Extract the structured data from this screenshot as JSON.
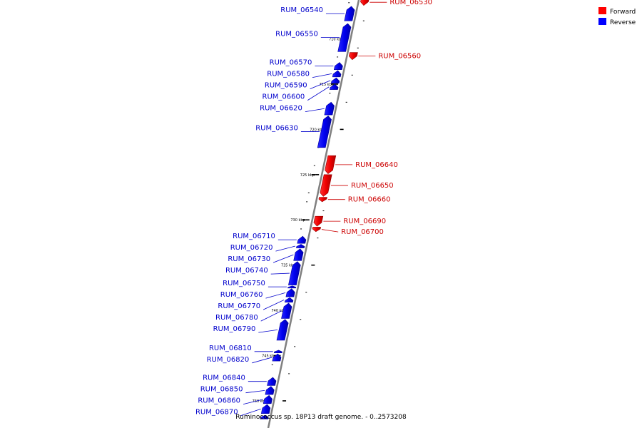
{
  "caption": "Ruminococcus sp. 18P13 draft genome. - 0..2573208",
  "colors": {
    "forward": "#ff0000",
    "reverse": "#0000ff",
    "axis": "#808080"
  },
  "legend": {
    "forward": {
      "label": "Forward",
      "color": "#ff0000"
    },
    "reverse": {
      "label": "Reverse",
      "color": "#0000ff"
    }
  },
  "axis": {
    "start_kbp": 706,
    "end_kbp": 753,
    "ticks": [
      {
        "label": "710 kbp",
        "kbp": 710
      },
      {
        "label": "715 kbp",
        "kbp": 715
      },
      {
        "label": "720 kbp",
        "kbp": 720
      },
      {
        "label": "725 kbp",
        "kbp": 725
      },
      {
        "label": "730 kbp",
        "kbp": 730
      },
      {
        "label": "735 kbp",
        "kbp": 735
      },
      {
        "label": "740 kbp",
        "kbp": 740
      },
      {
        "label": "745 kbp",
        "kbp": 745
      },
      {
        "label": "750 kbp",
        "kbp": 750
      }
    ]
  },
  "genes": [
    {
      "name": "RUM_06530",
      "strand": "forward",
      "start_kbp": 705.6,
      "end_kbp": 706.3
    },
    {
      "name": "RUM_06540",
      "strand": "reverse",
      "start_kbp": 706.4,
      "end_kbp": 708.0
    },
    {
      "name": "RUM_06550",
      "strand": "reverse",
      "start_kbp": 708.3,
      "end_kbp": 711.4
    },
    {
      "name": "RUM_06560",
      "strand": "forward",
      "start_kbp": 711.5,
      "end_kbp": 712.3
    },
    {
      "name": "RUM_06570",
      "strand": "reverse",
      "start_kbp": 712.6,
      "end_kbp": 713.4
    },
    {
      "name": "RUM_06580",
      "strand": "reverse",
      "start_kbp": 713.5,
      "end_kbp": 714.2
    },
    {
      "name": "RUM_06590",
      "strand": "reverse",
      "start_kbp": 714.3,
      "end_kbp": 714.9
    },
    {
      "name": "RUM_06600",
      "strand": "reverse",
      "start_kbp": 715.0,
      "end_kbp": 715.6
    },
    {
      "name": "RUM_06620",
      "strand": "reverse",
      "start_kbp": 717.0,
      "end_kbp": 718.4
    },
    {
      "name": "RUM_06630",
      "strand": "reverse",
      "start_kbp": 718.5,
      "end_kbp": 722.0
    },
    {
      "name": "RUM_06640",
      "strand": "forward",
      "start_kbp": 722.9,
      "end_kbp": 724.9
    },
    {
      "name": "RUM_06650",
      "strand": "forward",
      "start_kbp": 725.0,
      "end_kbp": 727.4
    },
    {
      "name": "RUM_06660",
      "strand": "forward",
      "start_kbp": 727.5,
      "end_kbp": 728.0
    },
    {
      "name": "RUM_06690",
      "strand": "forward",
      "start_kbp": 729.6,
      "end_kbp": 730.7
    },
    {
      "name": "RUM_06700",
      "strand": "forward",
      "start_kbp": 730.8,
      "end_kbp": 731.3
    },
    {
      "name": "RUM_06710",
      "strand": "reverse",
      "start_kbp": 731.8,
      "end_kbp": 732.6
    },
    {
      "name": "RUM_06720",
      "strand": "reverse",
      "start_kbp": 732.7,
      "end_kbp": 733.1
    },
    {
      "name": "RUM_06730",
      "strand": "reverse",
      "start_kbp": 733.2,
      "end_kbp": 734.5
    },
    {
      "name": "RUM_06740",
      "strand": "reverse",
      "start_kbp": 734.6,
      "end_kbp": 737.2
    },
    {
      "name": "RUM_06750",
      "strand": "reverse",
      "start_kbp": 737.3,
      "end_kbp": 737.5
    },
    {
      "name": "RUM_06760",
      "strand": "reverse",
      "start_kbp": 737.6,
      "end_kbp": 738.5
    },
    {
      "name": "RUM_06770",
      "strand": "reverse",
      "start_kbp": 738.6,
      "end_kbp": 739.1
    },
    {
      "name": "RUM_06780",
      "strand": "reverse",
      "start_kbp": 739.2,
      "end_kbp": 740.9
    },
    {
      "name": "RUM_06790",
      "strand": "reverse",
      "start_kbp": 741.0,
      "end_kbp": 743.3
    },
    {
      "name": "RUM_06810",
      "strand": "reverse",
      "start_kbp": 744.4,
      "end_kbp": 744.7
    },
    {
      "name": "RUM_06820",
      "strand": "reverse",
      "start_kbp": 744.8,
      "end_kbp": 745.6
    },
    {
      "name": "RUM_06840",
      "strand": "reverse",
      "start_kbp": 747.4,
      "end_kbp": 748.3
    },
    {
      "name": "RUM_06850",
      "strand": "reverse",
      "start_kbp": 748.4,
      "end_kbp": 749.3
    },
    {
      "name": "RUM_06860",
      "strand": "reverse",
      "start_kbp": 749.4,
      "end_kbp": 750.3
    },
    {
      "name": "RUM_06870",
      "strand": "reverse",
      "start_kbp": 750.4,
      "end_kbp": 751.4
    },
    {
      "name": "",
      "strand": "reverse",
      "start_kbp": 751.6,
      "end_kbp": 752.0
    }
  ]
}
